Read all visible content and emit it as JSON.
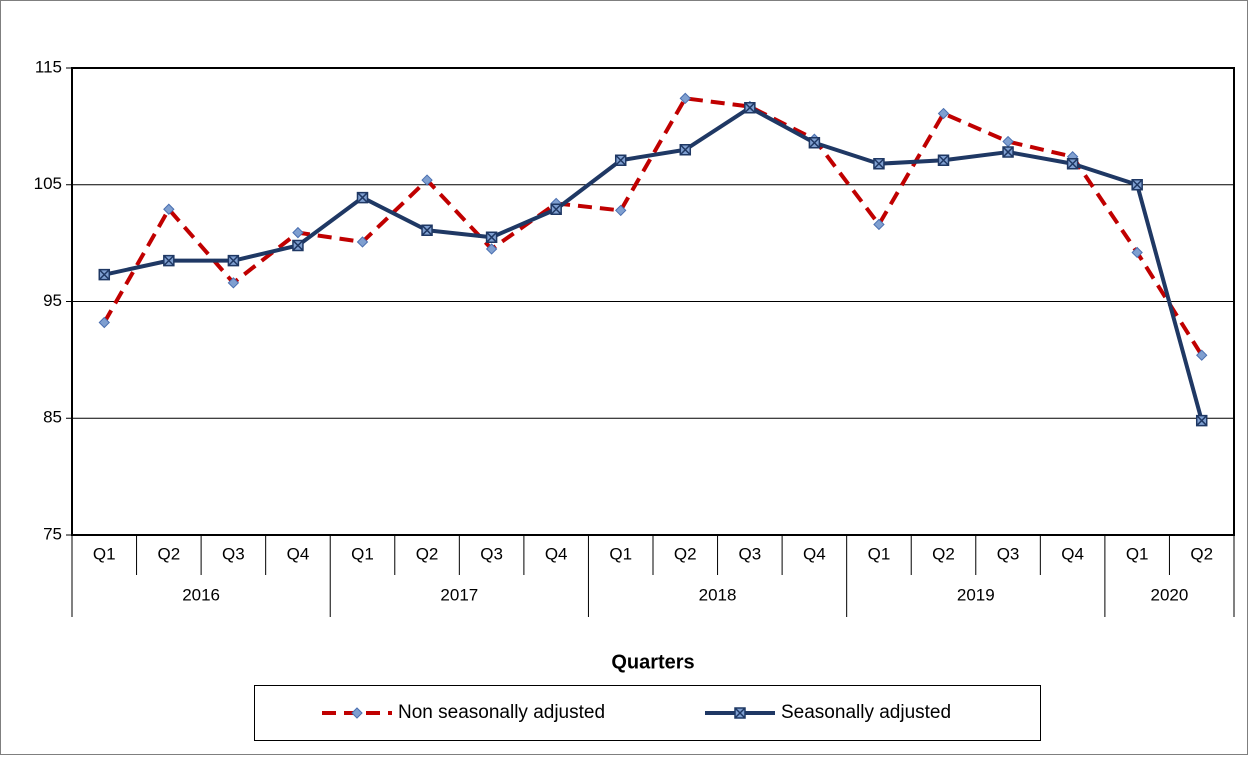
{
  "chart_data": {
    "type": "line",
    "x_label": "Quarters",
    "groups": [
      {
        "name": "2016",
        "categories": [
          "Q1",
          "Q2",
          "Q3",
          "Q4"
        ]
      },
      {
        "name": "2017",
        "categories": [
          "Q1",
          "Q2",
          "Q3",
          "Q4"
        ]
      },
      {
        "name": "2018",
        "categories": [
          "Q1",
          "Q2",
          "Q3",
          "Q4"
        ]
      },
      {
        "name": "2019",
        "categories": [
          "Q1",
          "Q2",
          "Q3",
          "Q4"
        ]
      },
      {
        "name": "2020",
        "categories": [
          "Q1",
          "Q2"
        ]
      }
    ],
    "series": [
      {
        "name": "Non seasonally adjusted",
        "color": "#c00000",
        "dashed": true,
        "marker": "diamond",
        "values": [
          93.2,
          102.9,
          96.6,
          100.9,
          100.1,
          105.4,
          99.5,
          103.4,
          102.8,
          112.4,
          111.7,
          108.9,
          101.6,
          111.1,
          108.7,
          107.4,
          99.2,
          90.4
        ]
      },
      {
        "name": "Seasonally adjusted",
        "color": "#1f3864",
        "dashed": false,
        "marker": "square",
        "values": [
          97.3,
          98.5,
          98.5,
          99.8,
          103.9,
          101.1,
          100.5,
          102.9,
          107.1,
          108.0,
          111.6,
          108.6,
          106.8,
          107.1,
          107.8,
          106.8,
          105.0,
          84.8
        ]
      }
    ],
    "ylim": [
      75,
      115
    ],
    "yticks": [
      75,
      85,
      95,
      105,
      115
    ],
    "grid": true,
    "legend": "bottom"
  }
}
